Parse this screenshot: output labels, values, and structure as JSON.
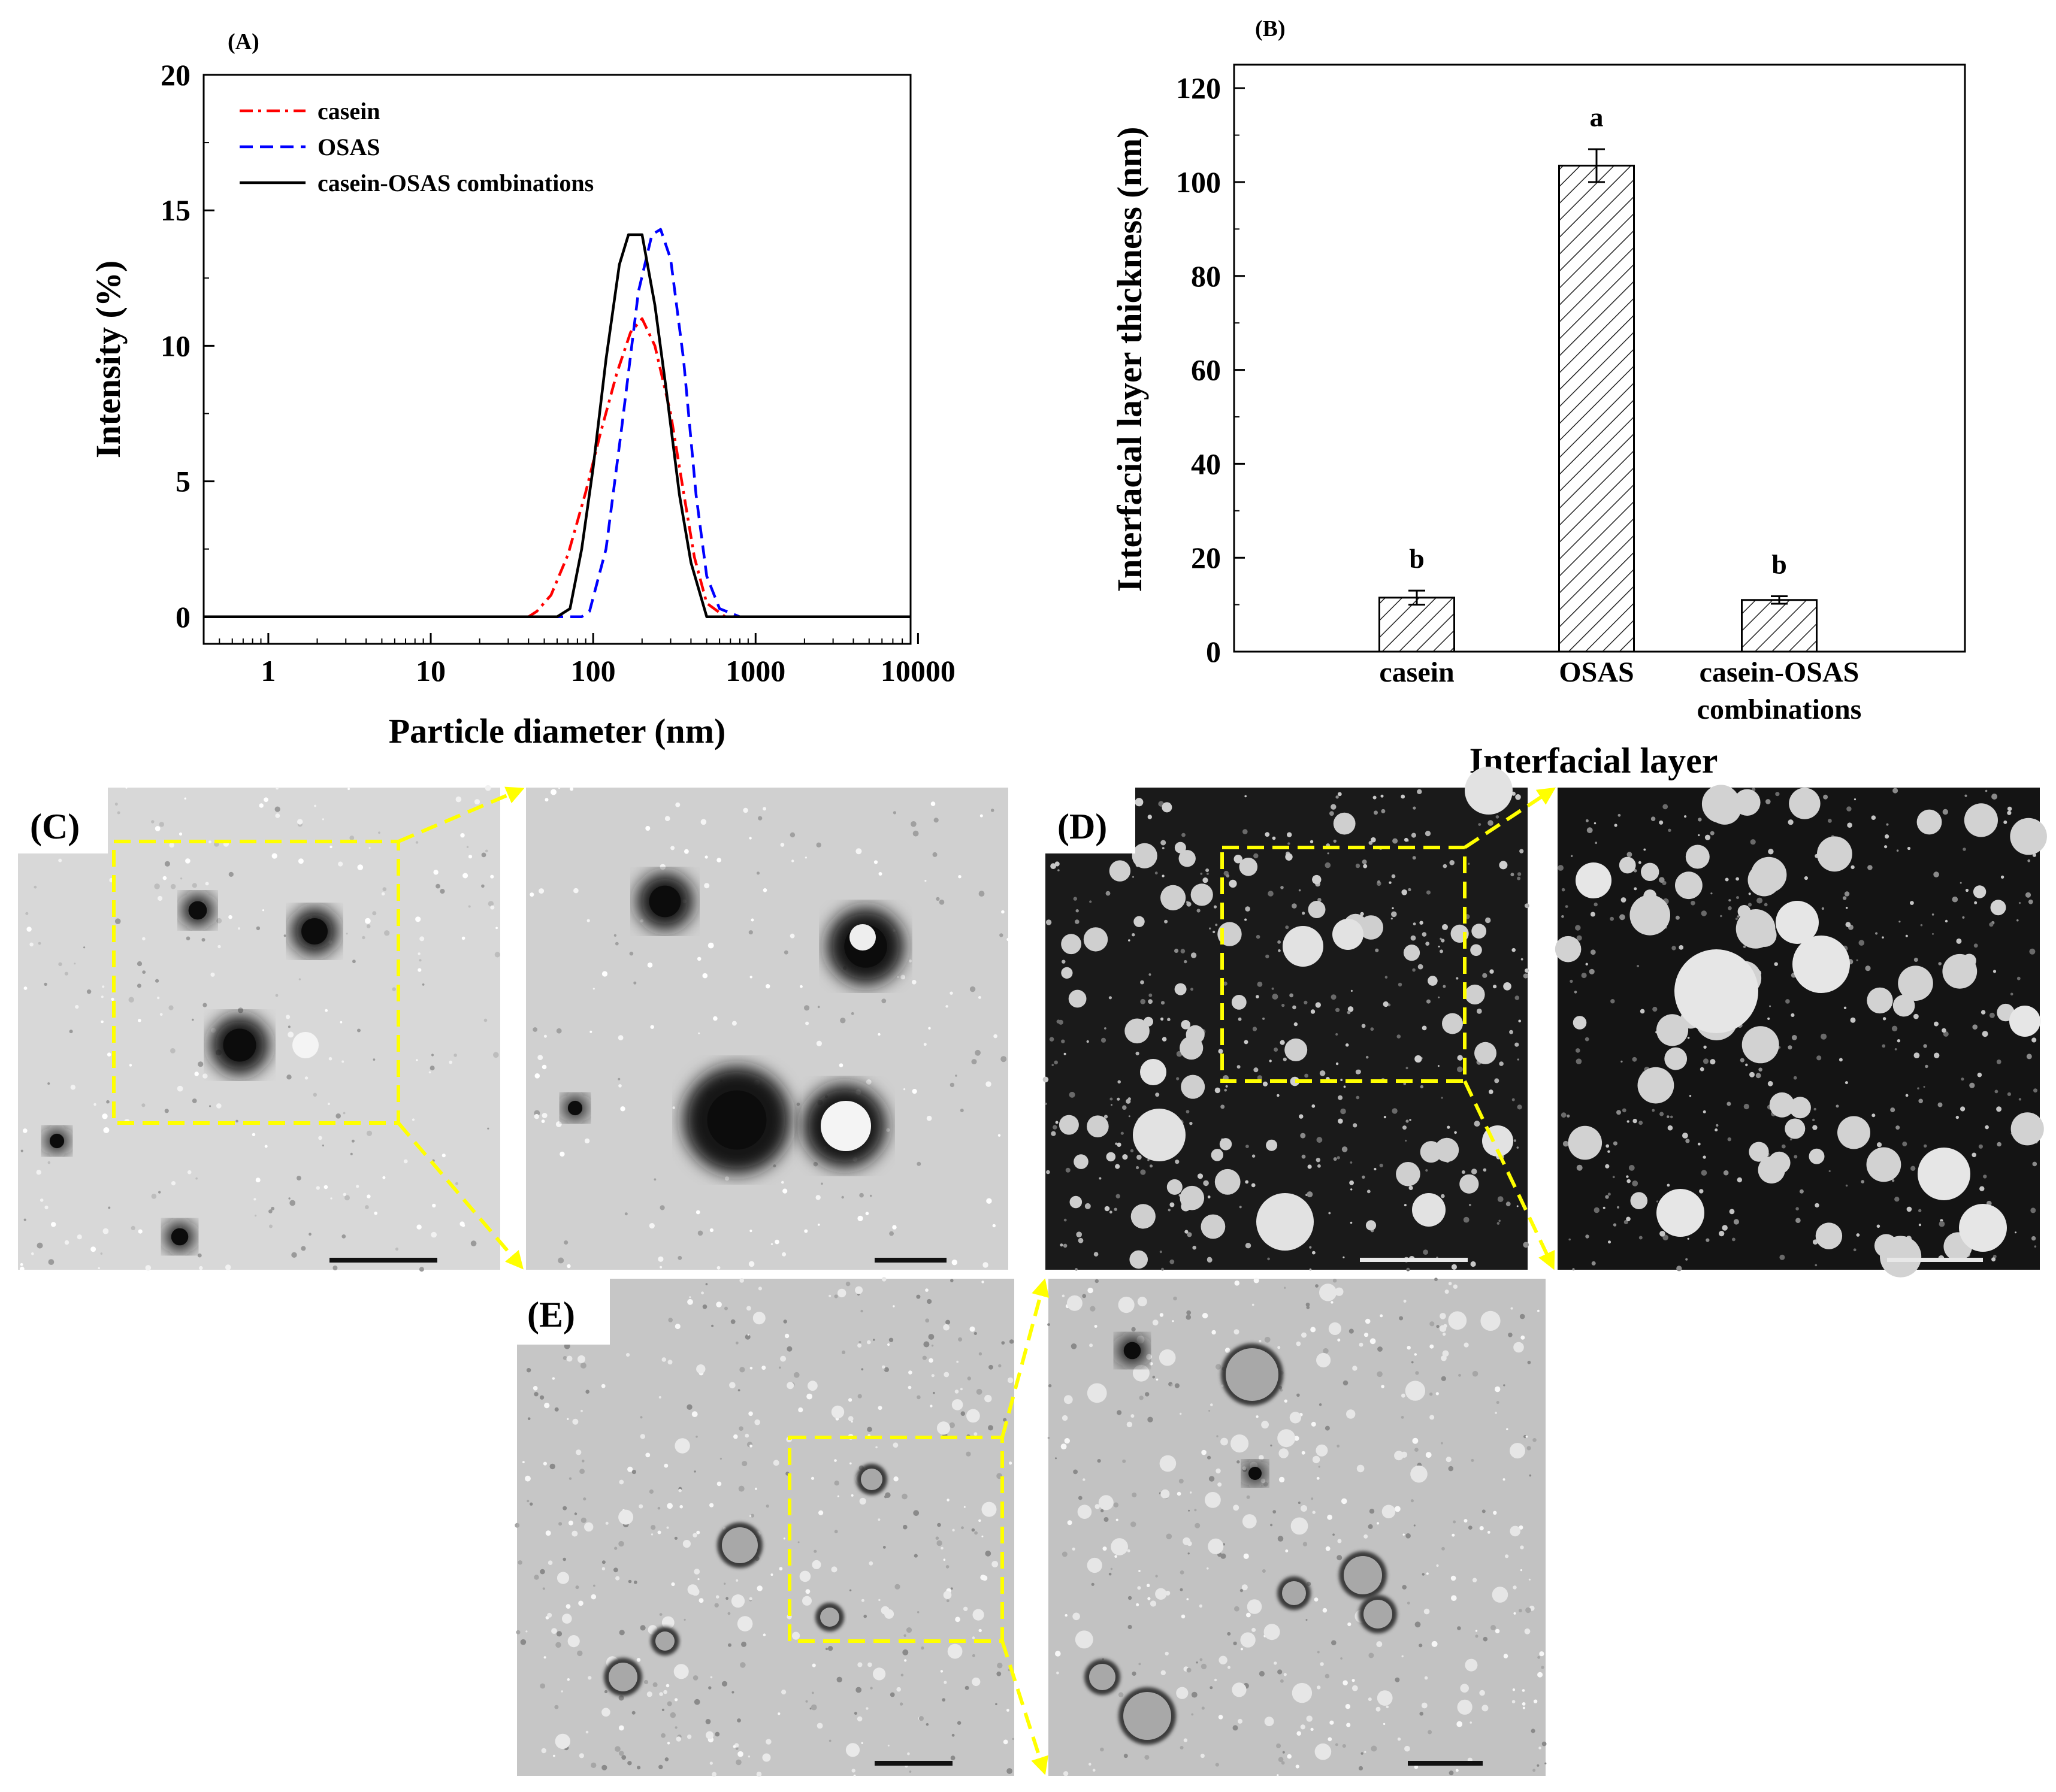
{
  "chart_data": [
    {
      "panel": "(A)",
      "type": "line",
      "xscale": "log",
      "xlabel": "Particle diameter (nm)",
      "ylabel": "Intensity (%)",
      "xlim": [
        0.4,
        9000
      ],
      "ylim": [
        -1,
        20
      ],
      "xticks": [
        "1",
        "10",
        "100",
        "1000",
        "10000"
      ],
      "yticks": [
        "0",
        "5",
        "10",
        "15",
        "20"
      ],
      "legend_position": "top-left",
      "series": [
        {
          "name": "casein",
          "style": "dash-dot",
          "color": "#ff0000",
          "x": [
            0.4,
            40,
            45,
            55,
            70,
            90,
            110,
            140,
            170,
            200,
            240,
            300,
            360,
            420,
            500,
            650,
            9000
          ],
          "y": [
            0,
            0,
            0.2,
            0.8,
            2.3,
            4.6,
            6.7,
            9.0,
            10.5,
            11.0,
            10.0,
            7.5,
            4.6,
            2.2,
            0.5,
            0,
            0
          ]
        },
        {
          "name": "OSAS",
          "style": "dash",
          "color": "#0000ff",
          "x": [
            0.4,
            85,
            95,
            120,
            150,
            190,
            230,
            260,
            300,
            360,
            430,
            500,
            600,
            800,
            9000
          ],
          "y": [
            0,
            0,
            0.2,
            2.5,
            7.0,
            12.0,
            14.1,
            14.3,
            13.2,
            9.5,
            4.5,
            1.5,
            0.3,
            0,
            0
          ]
        },
        {
          "name": "casein-OSAS combinations",
          "style": "solid",
          "color": "#000000",
          "x": [
            0.4,
            60,
            72,
            85,
            100,
            120,
            145,
            165,
            200,
            240,
            280,
            340,
            400,
            500,
            9000
          ],
          "y": [
            0,
            0,
            0.3,
            2.5,
            5.5,
            9.5,
            13.0,
            14.1,
            14.1,
            11.5,
            8.5,
            4.5,
            2.0,
            0,
            0
          ]
        }
      ]
    },
    {
      "panel": "(B)",
      "type": "bar",
      "categories": [
        "casein",
        "OSAS",
        "casein-OSAS combinations"
      ],
      "category_lines": [
        [
          "casein"
        ],
        [
          "OSAS"
        ],
        [
          "casein-OSAS",
          "combinations"
        ]
      ],
      "values": [
        11.5,
        103.5,
        11.0
      ],
      "errors": [
        1.5,
        3.5,
        0.8
      ],
      "significance": [
        "b",
        "a",
        "b"
      ],
      "xlabel": "Interfacial layer",
      "ylabel": "Interfacial layer thickness (nm)",
      "ylim": [
        0,
        125
      ],
      "yticks": [
        "0",
        "20",
        "40",
        "60",
        "80",
        "100",
        "120"
      ],
      "fill": "hatched"
    }
  ],
  "micrographs": {
    "C": {
      "label": "(C)"
    },
    "D": {
      "label": "(D)"
    },
    "E": {
      "label": "(E)"
    }
  },
  "colors": {
    "highlight": "#ffff00",
    "casein": "#ff0000",
    "osas": "#0000ff",
    "combo": "#000000"
  }
}
